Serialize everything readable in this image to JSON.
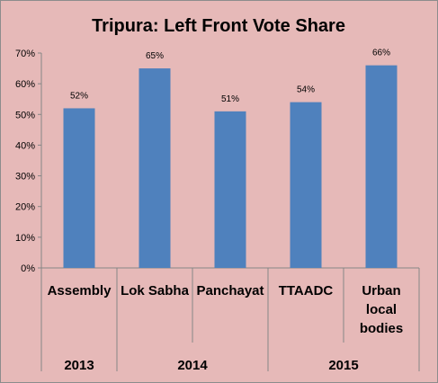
{
  "chart_data": {
    "type": "bar",
    "title": "Tripura: Left Front Vote Share",
    "categories": [
      "Assembly",
      "Lok Sabha",
      "Panchayat",
      "TTAADC",
      "Urban local bodies"
    ],
    "category_lines": [
      [
        "Assembly"
      ],
      [
        "Lok Sabha"
      ],
      [
        "Panchayat"
      ],
      [
        "TTAADC"
      ],
      [
        "Urban",
        "local",
        "bodies"
      ]
    ],
    "values": [
      52,
      65,
      51,
      54,
      66
    ],
    "data_labels": [
      "52%",
      "65%",
      "51%",
      "54%",
      "66%"
    ],
    "year_groups": [
      {
        "label": "2013",
        "categories": [
          "Assembly"
        ]
      },
      {
        "label": "2014",
        "categories": [
          "Lok Sabha",
          "Panchayat"
        ]
      },
      {
        "label": "2015",
        "categories": [
          "TTAADC",
          "Urban local bodies"
        ]
      }
    ],
    "y_ticks": [
      "0%",
      "10%",
      "20%",
      "30%",
      "40%",
      "50%",
      "60%",
      "70%"
    ],
    "ylim": [
      0,
      70
    ],
    "grid": false,
    "colors": {
      "bar": "#4f81bd",
      "background": "#e6b9b8",
      "axis": "#868686"
    }
  }
}
